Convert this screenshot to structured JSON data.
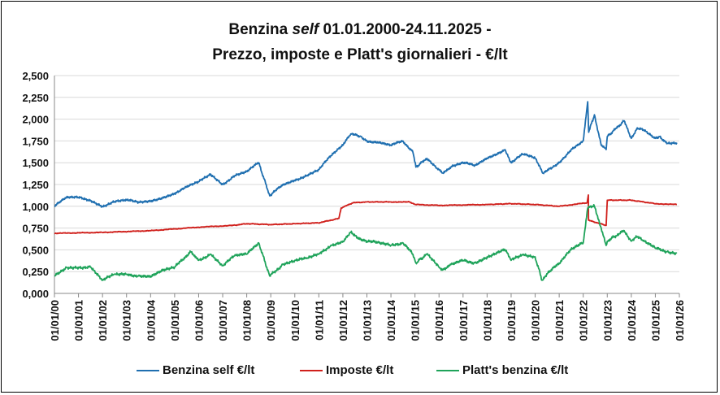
{
  "chart_data": {
    "type": "line",
    "title_parts": [
      "Benzina ",
      "self",
      " 01.01.2000-24.11.2025 -"
    ],
    "title_line2": "Prezzo, imposte e Platt's giornalieri - €/lt",
    "xlabel": "",
    "ylabel": "",
    "ylim": [
      0,
      2.5
    ],
    "y_ticks": [
      "0,000",
      "0,250",
      "0,500",
      "0,750",
      "1,000",
      "1,250",
      "1,500",
      "1,750",
      "2,000",
      "2,250",
      "2,500"
    ],
    "x_ticks": [
      "01/01/00",
      "01/01/01",
      "01/01/02",
      "01/01/03",
      "01/01/04",
      "01/01/05",
      "01/01/06",
      "01/01/07",
      "01/01/08",
      "01/01/09",
      "01/01/10",
      "01/01/11",
      "01/01/12",
      "01/01/13",
      "01/01/14",
      "01/01/15",
      "01/01/16",
      "01/01/17",
      "01/01/18",
      "01/01/19",
      "01/01/20",
      "01/01/21",
      "01/01/22",
      "01/01/23",
      "01/01/24",
      "01/01/25",
      "01/01/26"
    ],
    "grid": true,
    "legend_position": "bottom",
    "series": [
      {
        "name": "Benzina self €/lt",
        "color": "#1f6fb0",
        "x": [
          "2000-01-01",
          "2000-07-01",
          "2001-01-01",
          "2001-07-01",
          "2002-01-01",
          "2002-07-01",
          "2003-01-01",
          "2003-07-01",
          "2004-01-01",
          "2004-07-01",
          "2005-01-01",
          "2005-07-01",
          "2006-01-01",
          "2006-07-01",
          "2007-01-01",
          "2007-07-01",
          "2008-01-01",
          "2008-07-01",
          "2008-12-15",
          "2009-07-01",
          "2010-01-01",
          "2010-07-01",
          "2011-01-01",
          "2011-07-01",
          "2012-01-01",
          "2012-05-01",
          "2012-10-01",
          "2013-01-01",
          "2013-07-01",
          "2014-01-01",
          "2014-07-01",
          "2014-12-01",
          "2015-01-15",
          "2015-07-01",
          "2016-01-01",
          "2016-03-01",
          "2016-07-01",
          "2017-01-01",
          "2017-07-01",
          "2018-01-01",
          "2018-10-01",
          "2019-01-01",
          "2019-07-01",
          "2020-01-01",
          "2020-05-01",
          "2020-10-01",
          "2021-01-01",
          "2021-07-01",
          "2022-01-01",
          "2022-03-10",
          "2022-03-25",
          "2022-06-20",
          "2022-10-01",
          "2022-12-15",
          "2023-01-01",
          "2023-09-15",
          "2024-01-01",
          "2024-04-01",
          "2024-07-01",
          "2025-01-01",
          "2025-03-01",
          "2025-07-01",
          "2025-11-24"
        ],
        "y": [
          1.0,
          1.1,
          1.1,
          1.07,
          1.0,
          1.05,
          1.07,
          1.05,
          1.06,
          1.1,
          1.15,
          1.22,
          1.28,
          1.37,
          1.25,
          1.35,
          1.4,
          1.5,
          1.12,
          1.25,
          1.3,
          1.35,
          1.42,
          1.58,
          1.7,
          1.83,
          1.8,
          1.75,
          1.73,
          1.7,
          1.75,
          1.62,
          1.45,
          1.55,
          1.42,
          1.38,
          1.45,
          1.5,
          1.47,
          1.55,
          1.65,
          1.5,
          1.6,
          1.55,
          1.38,
          1.45,
          1.5,
          1.65,
          1.75,
          2.2,
          1.85,
          2.05,
          1.7,
          1.65,
          1.8,
          1.98,
          1.78,
          1.9,
          1.88,
          1.78,
          1.8,
          1.72,
          1.73
        ]
      },
      {
        "name": "Imposte €/lt",
        "color": "#d0201c",
        "x": [
          "2000-01-01",
          "2002-01-01",
          "2004-01-01",
          "2006-01-01",
          "2007-06-01",
          "2008-01-01",
          "2009-01-01",
          "2010-01-01",
          "2011-01-01",
          "2011-11-01",
          "2011-12-06",
          "2012-06-01",
          "2013-01-01",
          "2014-01-01",
          "2014-10-01",
          "2015-01-15",
          "2016-01-01",
          "2018-01-01",
          "2019-01-01",
          "2020-01-01",
          "2021-01-01",
          "2022-03-01",
          "2022-03-20",
          "2022-03-22",
          "2022-12-15",
          "2023-01-01",
          "2024-01-01",
          "2025-01-01",
          "2025-11-24"
        ],
        "y": [
          0.69,
          0.7,
          0.72,
          0.76,
          0.78,
          0.8,
          0.79,
          0.8,
          0.81,
          0.86,
          0.98,
          1.04,
          1.05,
          1.05,
          1.05,
          1.02,
          1.01,
          1.02,
          1.03,
          1.02,
          1.0,
          1.04,
          1.13,
          0.84,
          0.78,
          1.07,
          1.07,
          1.03,
          1.02
        ]
      },
      {
        "name": "Platt's benzina €/lt",
        "color": "#1fa35a",
        "x": [
          "2000-01-01",
          "2000-07-01",
          "2001-01-01",
          "2001-07-01",
          "2002-01-01",
          "2002-07-01",
          "2003-01-01",
          "2003-07-01",
          "2004-01-01",
          "2004-07-01",
          "2005-01-01",
          "2005-09-01",
          "2006-01-01",
          "2006-07-01",
          "2007-01-01",
          "2007-07-01",
          "2008-01-01",
          "2008-07-01",
          "2008-12-15",
          "2009-07-01",
          "2010-01-01",
          "2010-07-01",
          "2011-01-01",
          "2011-07-01",
          "2012-01-01",
          "2012-05-01",
          "2012-10-01",
          "2013-01-01",
          "2013-07-01",
          "2014-01-01",
          "2014-07-01",
          "2014-12-01",
          "2015-01-15",
          "2015-07-01",
          "2016-01-01",
          "2016-03-01",
          "2016-07-01",
          "2017-01-01",
          "2017-07-01",
          "2018-01-01",
          "2018-10-01",
          "2019-01-01",
          "2019-07-01",
          "2020-01-01",
          "2020-04-15",
          "2020-10-01",
          "2021-01-01",
          "2021-07-01",
          "2022-01-01",
          "2022-03-10",
          "2022-06-20",
          "2022-10-01",
          "2022-12-15",
          "2023-01-01",
          "2023-09-15",
          "2024-01-01",
          "2024-04-01",
          "2024-07-01",
          "2025-01-01",
          "2025-07-01",
          "2025-11-24"
        ],
        "y": [
          0.2,
          0.3,
          0.3,
          0.3,
          0.15,
          0.22,
          0.22,
          0.2,
          0.2,
          0.26,
          0.3,
          0.48,
          0.38,
          0.45,
          0.32,
          0.43,
          0.45,
          0.58,
          0.2,
          0.33,
          0.38,
          0.4,
          0.45,
          0.55,
          0.6,
          0.7,
          0.62,
          0.6,
          0.58,
          0.55,
          0.58,
          0.45,
          0.35,
          0.45,
          0.3,
          0.27,
          0.33,
          0.38,
          0.35,
          0.42,
          0.5,
          0.38,
          0.45,
          0.42,
          0.15,
          0.3,
          0.35,
          0.5,
          0.58,
          0.98,
          1.0,
          0.75,
          0.55,
          0.6,
          0.72,
          0.6,
          0.65,
          0.6,
          0.52,
          0.48,
          0.46
        ]
      }
    ]
  }
}
